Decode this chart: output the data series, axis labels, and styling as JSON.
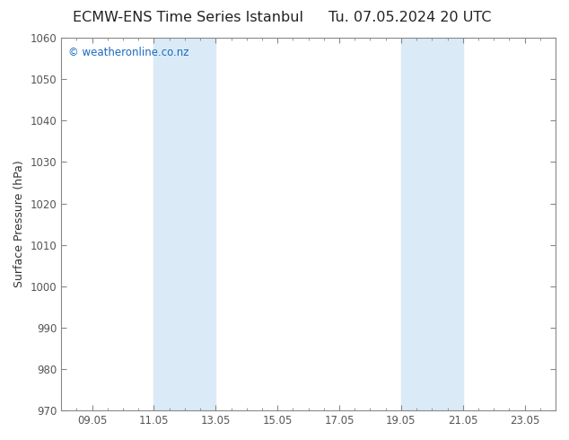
{
  "title_left": "ECMW-ENS Time Series Istanbul",
  "title_right": "Tu. 07.05.2024 20 UTC",
  "ylabel": "Surface Pressure (hPa)",
  "ylim": [
    970,
    1060
  ],
  "yticks": [
    970,
    980,
    990,
    1000,
    1010,
    1020,
    1030,
    1040,
    1050,
    1060
  ],
  "xtick_labels": [
    "09.05",
    "11.05",
    "13.05",
    "15.05",
    "17.05",
    "19.05",
    "21.05",
    "23.05"
  ],
  "xtick_positions": [
    1,
    3,
    5,
    7,
    9,
    11,
    13,
    15
  ],
  "xlim": [
    0,
    16
  ],
  "shaded_bands": [
    {
      "xmin": 3.0,
      "xmax": 5.0
    },
    {
      "xmin": 11.0,
      "xmax": 13.0
    }
  ],
  "shaded_color": "#daeaf7",
  "background_color": "#ffffff",
  "plot_bg_color": "#ffffff",
  "title_fontsize": 11.5,
  "axis_label_fontsize": 9,
  "tick_fontsize": 8.5,
  "watermark_text": "© weatheronline.co.nz",
  "watermark_color": "#1a6bbf",
  "watermark_fontsize": 8.5,
  "tick_color": "#555555",
  "spine_color": "#888888"
}
